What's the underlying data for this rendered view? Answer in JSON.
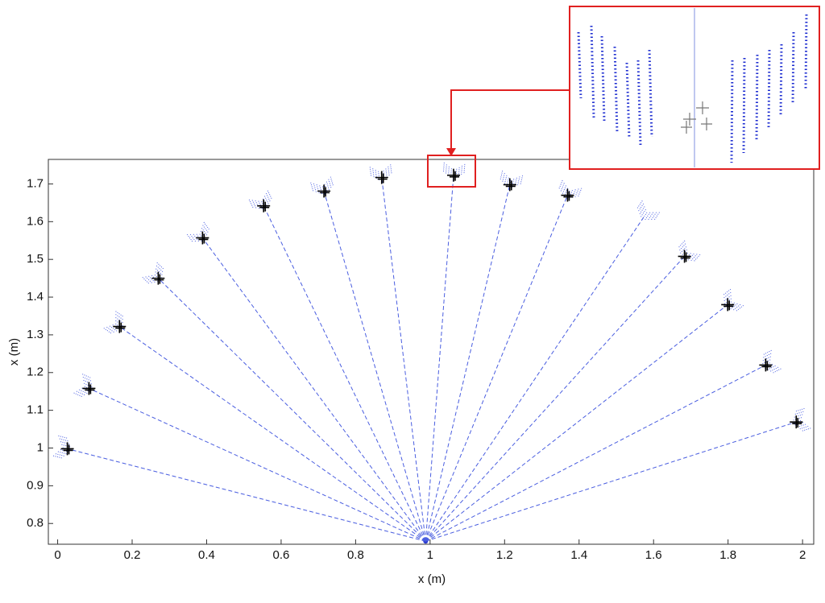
{
  "chart_data": {
    "type": "scatter",
    "xlabel": "x (m)",
    "ylabel": "x (m)",
    "xlim": [
      -0.025,
      2.03
    ],
    "ylim": [
      0.745,
      1.765
    ],
    "xticks": [
      0,
      0.2,
      0.4,
      0.6,
      0.8,
      1,
      1.2,
      1.4,
      1.6,
      1.8,
      2
    ],
    "yticks": [
      0.8,
      0.9,
      1,
      1.1,
      1.2,
      1.3,
      1.4,
      1.5,
      1.6,
      1.7
    ],
    "origin": [
      0.988,
      0.753
    ],
    "series": [
      {
        "marker": "ray",
        "color": "#4a5ee0",
        "x": [
          0.026,
          0.084,
          0.166,
          0.27,
          0.389,
          0.553,
          0.715,
          0.87,
          1.063,
          1.214,
          1.369,
          1.575,
          1.683,
          1.799,
          1.901,
          1.983
        ],
        "values": [
          0.998,
          1.158,
          1.322,
          1.45,
          1.557,
          1.642,
          1.681,
          1.717,
          1.723,
          1.698,
          1.67,
          1.614,
          1.508,
          1.38,
          1.22,
          1.069
        ]
      },
      {
        "marker": "cross",
        "color": "#000000",
        "x": [
          0.026,
          0.084,
          0.166,
          0.27,
          0.389,
          0.553,
          0.715,
          0.87,
          1.063,
          1.214,
          1.369,
          1.683,
          1.799,
          1.901,
          1.983
        ],
        "values": [
          0.998,
          1.158,
          1.322,
          1.45,
          1.557,
          1.642,
          1.681,
          1.717,
          1.723,
          1.698,
          1.67,
          1.508,
          1.38,
          1.22,
          1.069
        ]
      }
    ]
  }
}
